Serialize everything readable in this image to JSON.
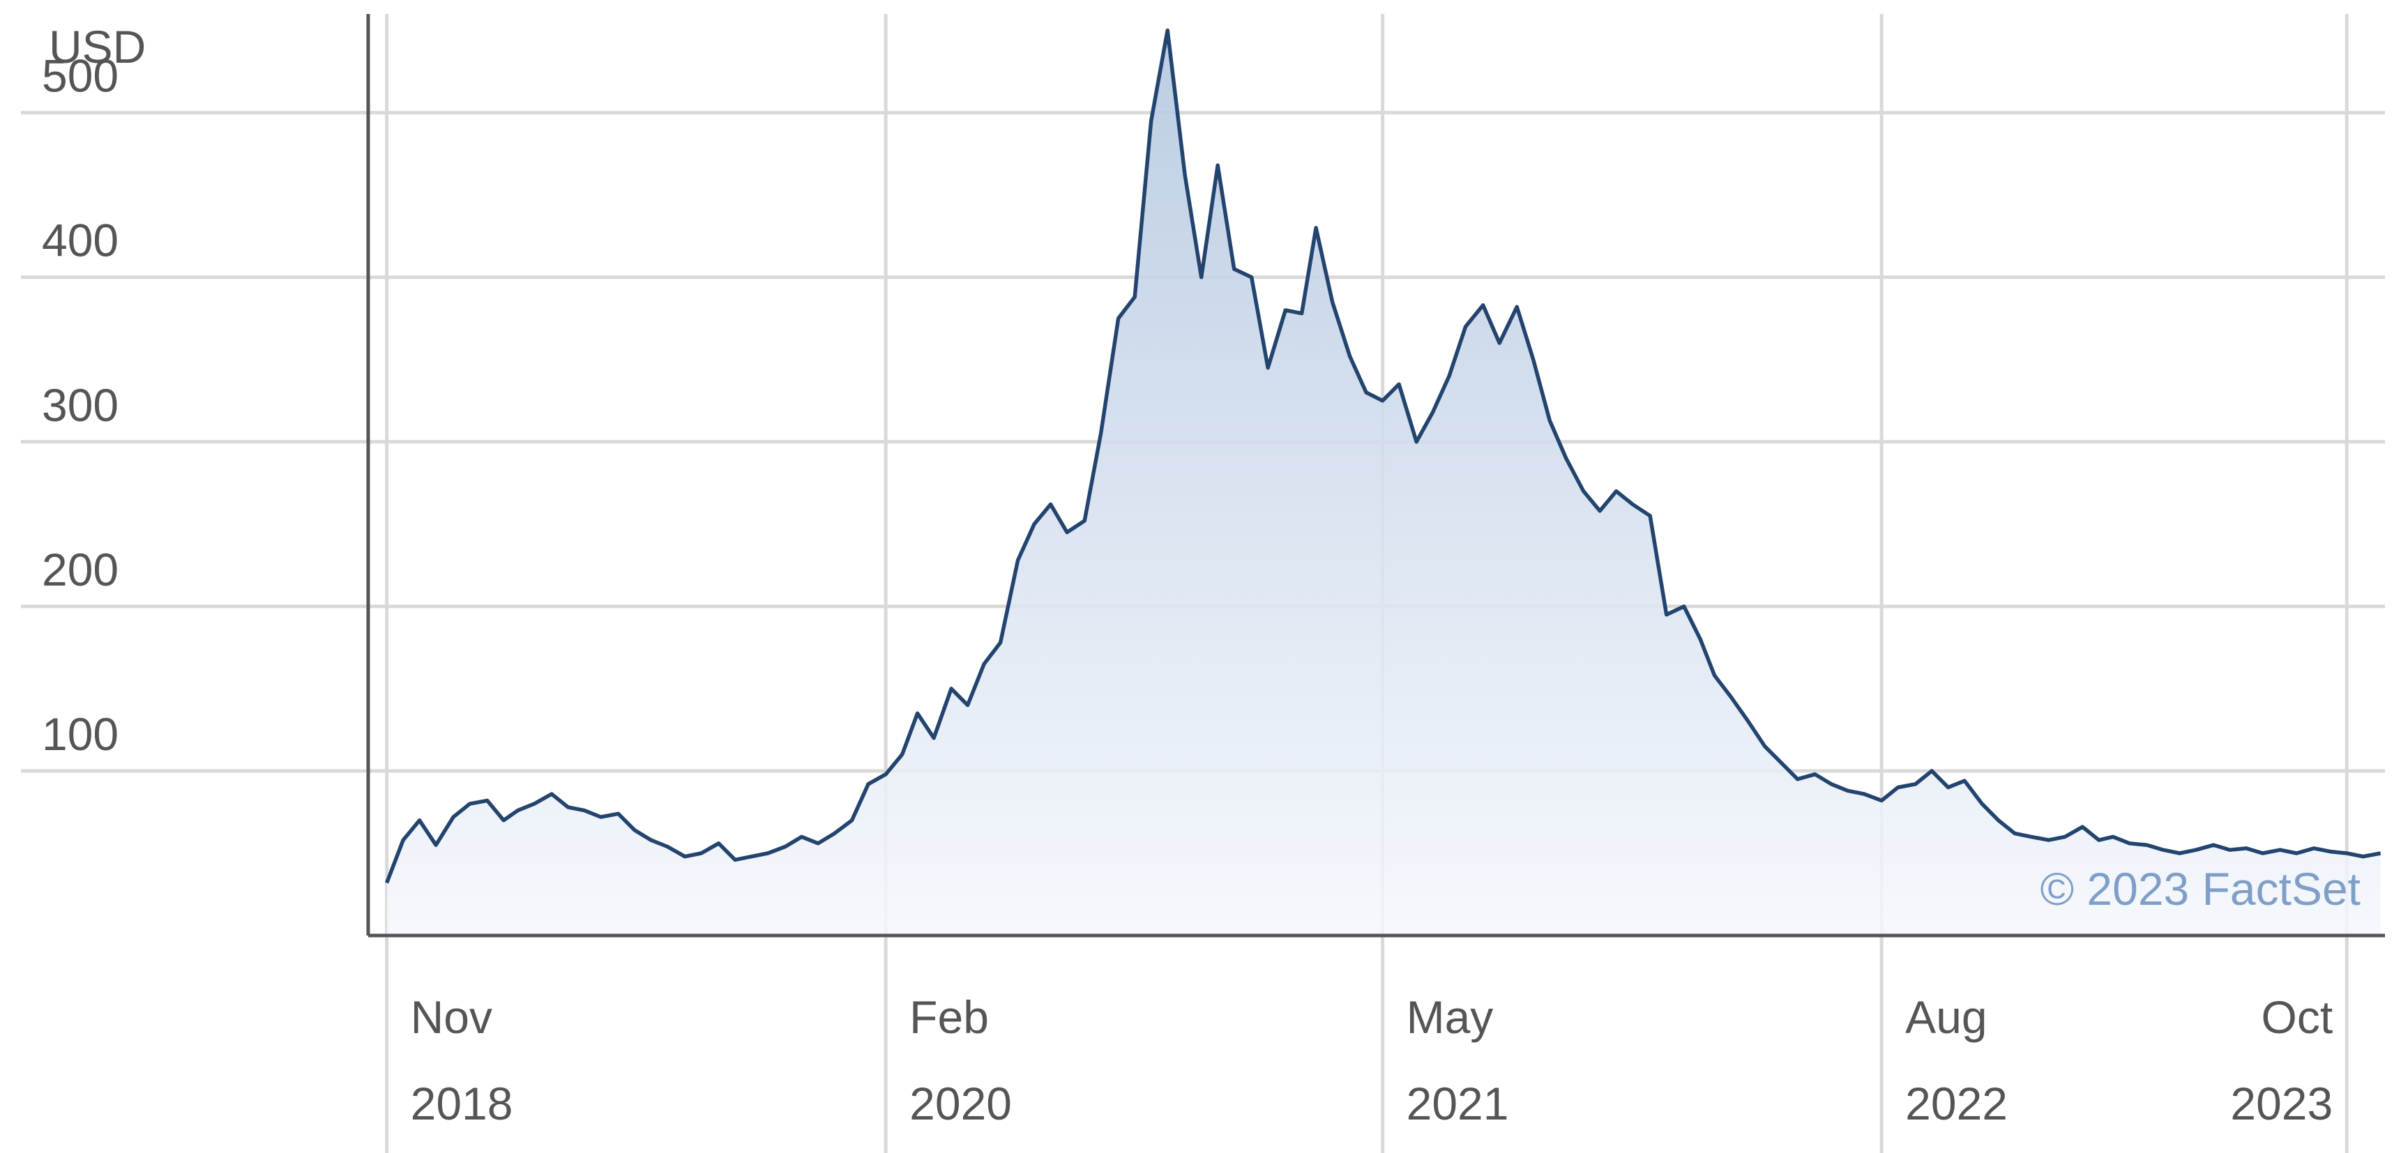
{
  "chart_data": {
    "type": "area",
    "title": "",
    "ylabel": "USD",
    "ylim": [
      0,
      560
    ],
    "yticks": [
      100,
      200,
      300,
      400,
      500
    ],
    "grid": true,
    "xticks": [
      {
        "date": "2018-11",
        "month": "Nov",
        "year": "2018"
      },
      {
        "date": "2020-02",
        "month": "Feb",
        "year": "2020"
      },
      {
        "date": "2021-05",
        "month": "May",
        "year": "2021"
      },
      {
        "date": "2022-08",
        "month": "Aug",
        "year": "2022"
      },
      {
        "date": "2023-10",
        "month": "Oct",
        "year": "2023"
      }
    ],
    "x": [
      "2018-11-01",
      "2018-11-16",
      "2018-12-01",
      "2018-12-16",
      "2019-01-01",
      "2019-01-16",
      "2019-02-01",
      "2019-02-16",
      "2019-03-01",
      "2019-03-16",
      "2019-04-01",
      "2019-04-16",
      "2019-05-01",
      "2019-05-16",
      "2019-06-01",
      "2019-06-16",
      "2019-07-01",
      "2019-07-16",
      "2019-08-01",
      "2019-08-16",
      "2019-09-01",
      "2019-09-16",
      "2019-10-01",
      "2019-10-16",
      "2019-11-01",
      "2019-11-16",
      "2019-12-01",
      "2019-12-16",
      "2020-01-01",
      "2020-01-16",
      "2020-02-01",
      "2020-02-16",
      "2020-03-01",
      "2020-03-16",
      "2020-04-01",
      "2020-04-16",
      "2020-05-01",
      "2020-05-16",
      "2020-06-01",
      "2020-06-16",
      "2020-07-01",
      "2020-07-16",
      "2020-08-01",
      "2020-08-16",
      "2020-09-01",
      "2020-09-16",
      "2020-10-01",
      "2020-10-16",
      "2020-11-01",
      "2020-11-16",
      "2020-12-01",
      "2020-12-16",
      "2021-01-01",
      "2021-01-16",
      "2021-02-01",
      "2021-02-16",
      "2021-03-01",
      "2021-03-16",
      "2021-04-01",
      "2021-04-16",
      "2021-05-01",
      "2021-05-16",
      "2021-06-01",
      "2021-06-16",
      "2021-07-01",
      "2021-07-16",
      "2021-08-01",
      "2021-08-16",
      "2021-09-01",
      "2021-09-16",
      "2021-10-01",
      "2021-10-16",
      "2021-11-01",
      "2021-11-16",
      "2021-12-01",
      "2021-12-16",
      "2022-01-01",
      "2022-01-16",
      "2022-02-01",
      "2022-02-16",
      "2022-03-01",
      "2022-03-16",
      "2022-04-01",
      "2022-04-16",
      "2022-05-01",
      "2022-05-16",
      "2022-06-01",
      "2022-06-16",
      "2022-07-01",
      "2022-07-16",
      "2022-08-01",
      "2022-08-16",
      "2022-09-01",
      "2022-09-16",
      "2022-10-01",
      "2022-10-16",
      "2022-11-01",
      "2022-11-16",
      "2022-12-01",
      "2022-12-16",
      "2023-01-01",
      "2023-01-16",
      "2023-02-01",
      "2023-02-16",
      "2023-03-01",
      "2023-03-16",
      "2023-04-01",
      "2023-04-16",
      "2023-05-01",
      "2023-05-16",
      "2023-06-01",
      "2023-06-16",
      "2023-07-01",
      "2023-07-16",
      "2023-08-01",
      "2023-08-16",
      "2023-09-01",
      "2023-09-16",
      "2023-10-01",
      "2023-10-16",
      "2023-11-01"
    ],
    "series": [
      {
        "values": [
          32,
          58,
          70,
          55,
          72,
          80,
          82,
          70,
          76,
          80,
          86,
          78,
          76,
          72,
          74,
          64,
          58,
          54,
          48,
          50,
          56,
          46,
          48,
          50,
          54,
          60,
          56,
          62,
          70,
          92,
          98,
          110,
          135,
          120,
          150,
          140,
          165,
          178,
          228,
          250,
          262,
          245,
          252,
          305,
          375,
          388,
          495,
          550,
          462,
          400,
          468,
          405,
          400,
          345,
          380,
          378,
          430,
          385,
          352,
          330,
          325,
          335,
          300,
          318,
          340,
          370,
          383,
          360,
          382,
          350,
          313,
          290,
          270,
          258,
          270,
          262,
          255,
          195,
          200,
          180,
          158,
          145,
          130,
          115,
          105,
          95,
          98,
          92,
          88,
          86,
          82,
          90,
          92,
          100,
          90,
          94,
          80,
          70,
          62,
          60,
          58,
          60,
          66,
          58,
          60,
          56,
          55,
          52,
          50,
          52,
          55,
          52,
          53,
          50,
          52,
          50,
          53,
          51,
          50,
          48,
          50
        ]
      }
    ],
    "watermark": "© 2023 FactSet"
  }
}
